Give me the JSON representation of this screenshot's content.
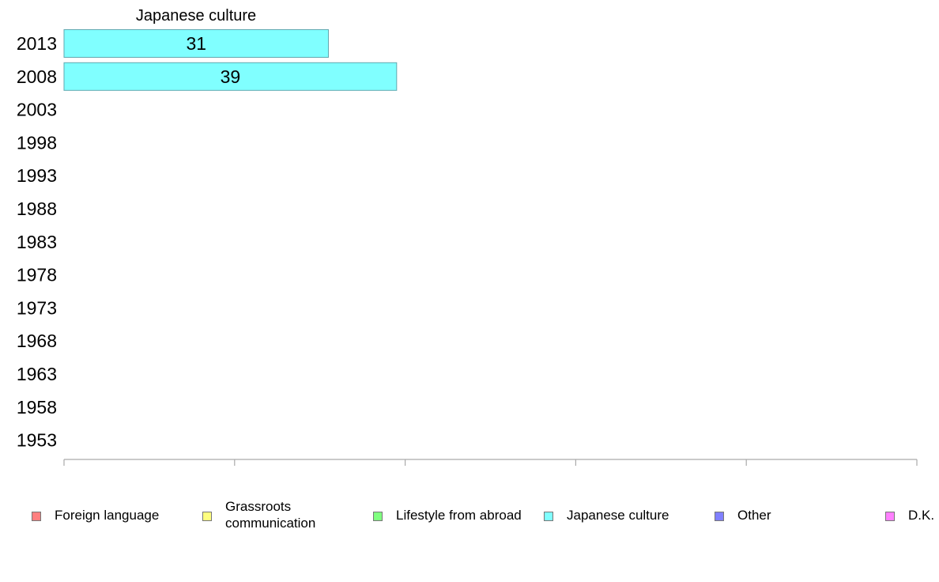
{
  "chart_data": {
    "type": "bar",
    "orientation": "horizontal",
    "stacked": true,
    "categories": [
      "2013",
      "2008",
      "2003",
      "1998",
      "1993",
      "1988",
      "1983",
      "1978",
      "1973",
      "1968",
      "1963",
      "1958",
      "1953"
    ],
    "series": [
      {
        "name": "Foreign language",
        "color": "#ff8080",
        "values": [
          null,
          null,
          null,
          null,
          null,
          null,
          null,
          null,
          null,
          null,
          null,
          null,
          null
        ]
      },
      {
        "name": "Grassroots\ncommunication",
        "color": "#ffff80",
        "values": [
          null,
          null,
          null,
          null,
          null,
          null,
          null,
          null,
          null,
          null,
          null,
          null,
          null
        ]
      },
      {
        "name": "Lifestyle from abroad",
        "color": "#80ff80",
        "values": [
          null,
          null,
          null,
          null,
          null,
          null,
          null,
          null,
          null,
          null,
          null,
          null,
          null
        ]
      },
      {
        "name": "Japanese culture",
        "color": "#80ffff",
        "values": [
          31,
          39,
          null,
          null,
          null,
          null,
          null,
          null,
          null,
          null,
          null,
          null,
          null
        ]
      },
      {
        "name": "Other",
        "color": "#8080ff",
        "values": [
          null,
          null,
          null,
          null,
          null,
          null,
          null,
          null,
          null,
          null,
          null,
          null,
          null
        ]
      },
      {
        "name": "D.K.",
        "color": "#ff80ff",
        "values": [
          null,
          null,
          null,
          null,
          null,
          null,
          null,
          null,
          null,
          null,
          null,
          null,
          null
        ]
      }
    ],
    "column_label": "Japanese culture",
    "xlim": [
      0,
      100
    ],
    "xticks": [
      0,
      20,
      40,
      60,
      80,
      100
    ],
    "grid": false,
    "legend_position": "bottom"
  }
}
